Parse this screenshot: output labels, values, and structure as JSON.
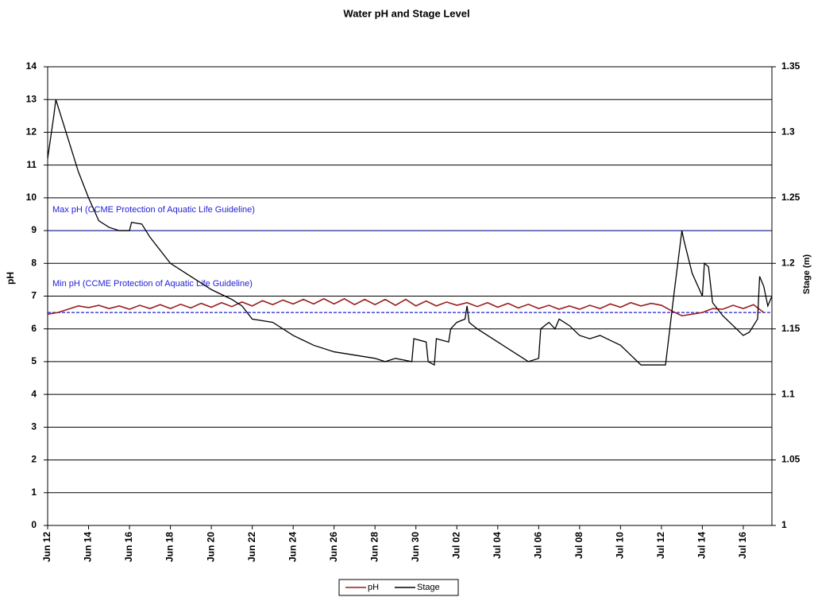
{
  "chart_data": {
    "type": "line",
    "title": "Water pH and Stage Level",
    "y_label": "pH",
    "y2_label": "Stage (m)",
    "xlim": [
      0,
      35.4
    ],
    "xticks": [
      {
        "value": 0,
        "label": "Jun 12"
      },
      {
        "value": 2,
        "label": "Jun 14"
      },
      {
        "value": 4,
        "label": "Jun 16"
      },
      {
        "value": 6,
        "label": "Jun 18"
      },
      {
        "value": 8,
        "label": "Jun 20"
      },
      {
        "value": 10,
        "label": "Jun 22"
      },
      {
        "value": 12,
        "label": "Jun 24"
      },
      {
        "value": 14,
        "label": "Jun 26"
      },
      {
        "value": 16,
        "label": "Jun 28"
      },
      {
        "value": 18,
        "label": "Jun 30"
      },
      {
        "value": 20,
        "label": "Jul 02"
      },
      {
        "value": 22,
        "label": "Jul 04"
      },
      {
        "value": 24,
        "label": "Jul 06"
      },
      {
        "value": 26,
        "label": "Jul 08"
      },
      {
        "value": 28,
        "label": "Jul 10"
      },
      {
        "value": 30,
        "label": "Jul 12"
      },
      {
        "value": 32,
        "label": "Jul 14"
      },
      {
        "value": 34,
        "label": "Jul 16"
      }
    ],
    "ylim": [
      0,
      14
    ],
    "yticks": [
      0,
      1,
      2,
      3,
      4,
      5,
      6,
      7,
      8,
      9,
      10,
      11,
      12,
      13,
      14
    ],
    "y2lim": [
      1,
      1.35
    ],
    "y2ticks": [
      1,
      1.05,
      1.1,
      1.15,
      1.2,
      1.25,
      1.3,
      1.35
    ],
    "grid": true,
    "reference_lines": [
      {
        "value": 9,
        "label": "Max pH (CCME Protection of Aquatic Life Guideline)",
        "color": "#1f1fd6"
      },
      {
        "value": 6.5,
        "label": "Min pH (CCME Protection of Aquatic Life Guideline)",
        "color": "#1f1fd6"
      }
    ],
    "legend": "bottom",
    "series": [
      {
        "name": "pH",
        "color": "#9b1c1c",
        "x": [
          0,
          0.5,
          1,
          1.5,
          2,
          2.5,
          3,
          3.5,
          4,
          4.5,
          5,
          5.5,
          6,
          6.5,
          7,
          7.5,
          8,
          8.5,
          9,
          9.5,
          10,
          10.5,
          11,
          11.5,
          12,
          12.5,
          13,
          13.5,
          14,
          14.5,
          15,
          15.5,
          16,
          16.5,
          17,
          17.5,
          18,
          18.5,
          19,
          19.5,
          20,
          20.5,
          21,
          21.5,
          22,
          22.5,
          23,
          23.5,
          24,
          24.5,
          25,
          25.5,
          26,
          26.5,
          27,
          27.5,
          28,
          28.5,
          29,
          29.5,
          30,
          30.5,
          31,
          31.5,
          32,
          32.5,
          33,
          33.5,
          34,
          34.5,
          35
        ],
        "values": [
          6.45,
          6.5,
          6.6,
          6.7,
          6.65,
          6.72,
          6.62,
          6.7,
          6.6,
          6.72,
          6.62,
          6.74,
          6.62,
          6.75,
          6.64,
          6.78,
          6.66,
          6.8,
          6.68,
          6.82,
          6.7,
          6.86,
          6.74,
          6.88,
          6.76,
          6.9,
          6.76,
          6.92,
          6.76,
          6.92,
          6.74,
          6.9,
          6.74,
          6.9,
          6.72,
          6.9,
          6.7,
          6.85,
          6.7,
          6.82,
          6.72,
          6.8,
          6.68,
          6.8,
          6.66,
          6.78,
          6.64,
          6.75,
          6.62,
          6.72,
          6.6,
          6.7,
          6.6,
          6.72,
          6.62,
          6.76,
          6.66,
          6.8,
          6.7,
          6.78,
          6.72,
          6.55,
          6.4,
          6.45,
          6.5,
          6.62,
          6.6,
          6.72,
          6.62,
          6.74,
          6.5
        ]
      },
      {
        "name": "Stage",
        "color": "#000000",
        "axis": "y2",
        "x": [
          0,
          0.3,
          0.4,
          0.6,
          1,
          1.5,
          2,
          2.5,
          3,
          3.5,
          4,
          4.1,
          4.6,
          5,
          6,
          7,
          8,
          9,
          9.5,
          10,
          11,
          12,
          13,
          14,
          15,
          16,
          16.5,
          17,
          17.8,
          17.9,
          18.5,
          18.6,
          18.9,
          19,
          19.6,
          19.7,
          20,
          20.4,
          20.5,
          20.6,
          21,
          22,
          23,
          23.5,
          24,
          24.1,
          24.5,
          24.8,
          25,
          25.5,
          26,
          26.5,
          27,
          28,
          28.5,
          29,
          30,
          30.2,
          30.6,
          31,
          31.1,
          31.5,
          32,
          32.1,
          32.3,
          32.5,
          33,
          34,
          34.3,
          34.7,
          34.8,
          35,
          35.2,
          35.4
        ],
        "values": [
          1.28,
          1.3125,
          1.325,
          1.315,
          1.295,
          1.27,
          1.25,
          1.2325,
          1.2275,
          1.225,
          1.225,
          1.2313,
          1.23,
          1.22,
          1.2,
          1.19,
          1.18,
          1.1725,
          1.1675,
          1.1575,
          1.155,
          1.145,
          1.1375,
          1.1325,
          1.13,
          1.1275,
          1.125,
          1.1275,
          1.125,
          1.1425,
          1.14,
          1.125,
          1.1225,
          1.1425,
          1.14,
          1.15,
          1.155,
          1.1575,
          1.1675,
          1.155,
          1.15,
          1.14,
          1.13,
          1.125,
          1.1275,
          1.15,
          1.155,
          1.15,
          1.1575,
          1.1525,
          1.145,
          1.1425,
          1.145,
          1.1375,
          1.13,
          1.1225,
          1.1225,
          1.1225,
          1.175,
          1.225,
          1.2175,
          1.1925,
          1.175,
          1.2,
          1.1975,
          1.17,
          1.16,
          1.145,
          1.1475,
          1.1575,
          1.19,
          1.1825,
          1.1675,
          1.175
        ]
      }
    ]
  }
}
